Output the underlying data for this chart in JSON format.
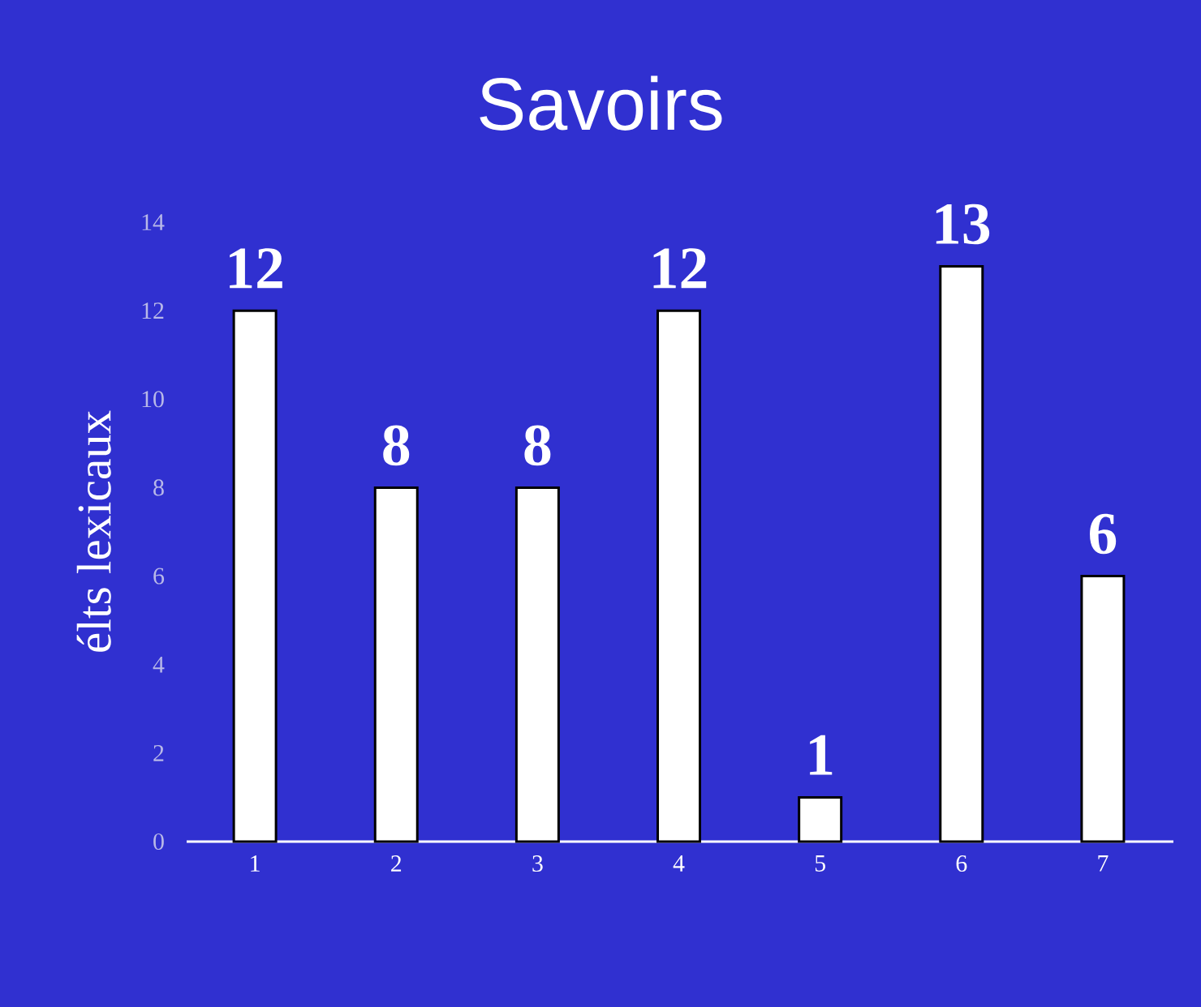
{
  "chart_data": {
    "type": "bar",
    "title": "Savoirs",
    "ylabel": "élts lexicaux",
    "categories": [
      "1",
      "2",
      "3",
      "4",
      "5",
      "6",
      "7"
    ],
    "values": [
      12,
      8,
      8,
      12,
      1,
      13,
      6
    ],
    "color": "#ffffff",
    "ylim": [
      0,
      14
    ],
    "yticks": [
      0,
      2,
      4,
      6,
      8,
      10,
      12,
      14
    ],
    "data_labels": true
  }
}
